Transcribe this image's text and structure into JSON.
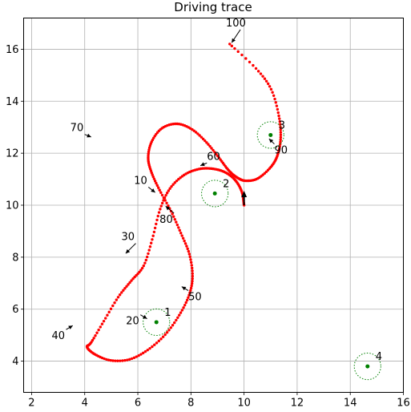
{
  "chart_data": {
    "type": "scatter",
    "title": "Driving trace",
    "xlabel": "",
    "ylabel": "",
    "xlim": [
      1.7,
      16
    ],
    "ylim": [
      2.8,
      17.2
    ],
    "xticks": [
      2,
      4,
      6,
      8,
      10,
      12,
      14,
      16
    ],
    "yticks": [
      4,
      6,
      8,
      10,
      12,
      14,
      16
    ],
    "grid": true,
    "colors": {
      "trace": "#ff0000",
      "landmark": "#008000",
      "grid": "#b0b0b0",
      "axes": "#000000"
    },
    "trace": {
      "name": "",
      "marker": "dot",
      "color": "#ff0000",
      "x": [
        10.0,
        9.91,
        9.67,
        9.3,
        8.83,
        8.3,
        7.74,
        7.21,
        6.84,
        6.54,
        6.22,
        5.76,
        5.26,
        4.72,
        4.25,
        4.09,
        4.39,
        4.98,
        5.69,
        6.37,
        7.03,
        7.56,
        7.93,
        8.06,
        7.94,
        7.62,
        7.25,
        6.82,
        6.52,
        6.39,
        6.52,
        6.91,
        7.48,
        8.05,
        8.59,
        9.06,
        9.43,
        9.76,
        10.07,
        10.52,
        11.01,
        11.27,
        11.38,
        11.31,
        11.02,
        10.45,
        9.46
      ],
      "y": [
        10.0,
        10.53,
        10.96,
        11.26,
        11.4,
        11.39,
        11.16,
        10.64,
        9.85,
        8.68,
        7.67,
        7.1,
        6.46,
        5.54,
        4.73,
        4.54,
        4.26,
        4.03,
        4.07,
        4.43,
        5.02,
        5.77,
        6.54,
        7.27,
        8.12,
        8.93,
        9.77,
        10.58,
        11.25,
        11.82,
        12.44,
        12.96,
        13.13,
        12.91,
        12.41,
        11.82,
        11.33,
        11.05,
        10.94,
        11.03,
        11.47,
        11.95,
        12.61,
        13.44,
        14.46,
        15.26,
        16.2
      ]
    },
    "landmarks": [
      {
        "label": "1",
        "x": 6.7,
        "y": 5.5
      },
      {
        "label": "2",
        "x": 8.9,
        "y": 10.45
      },
      {
        "label": "3",
        "x": 11.0,
        "y": 12.7
      },
      {
        "label": "4",
        "x": 14.65,
        "y": 3.8
      }
    ],
    "step_labels": [
      {
        "text": "10",
        "x": 6.7,
        "y": 10.45
      },
      {
        "text": "20",
        "x": 6.4,
        "y": 5.6
      },
      {
        "text": "30",
        "x": 5.5,
        "y": 8.1
      },
      {
        "text": "40",
        "x": 3.6,
        "y": 5.4
      },
      {
        "text": "50",
        "x": 7.6,
        "y": 6.9
      },
      {
        "text": "60",
        "x": 8.3,
        "y": 11.5
      },
      {
        "text": "70",
        "x": 4.3,
        "y": 12.6
      },
      {
        "text": "80",
        "x": 7.0,
        "y": 10.0
      },
      {
        "text": "90",
        "x": 10.9,
        "y": 12.6
      },
      {
        "text": "100",
        "x": 9.5,
        "y": 16.2
      }
    ],
    "vehicle": {
      "x": 10.0,
      "y": 10.0,
      "heading": "up"
    }
  }
}
